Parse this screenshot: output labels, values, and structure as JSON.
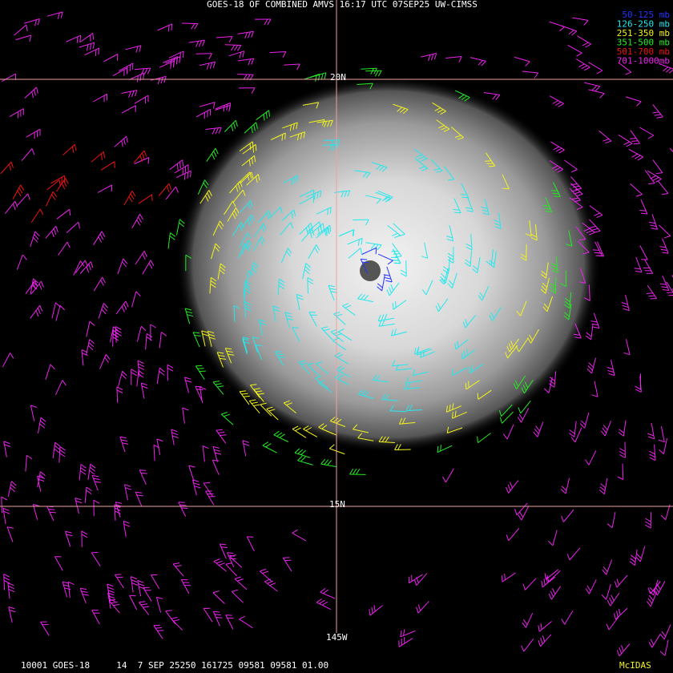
{
  "header": {
    "title": "GOES-18 OF COMBINED AMVS 16:17 UTC 07SEP25 UW-CIMSS"
  },
  "legend": [
    {
      "label": "50-125 mb",
      "color": "#2233ff"
    },
    {
      "label": "126-250 mb",
      "color": "#22e8ee"
    },
    {
      "label": "251-350 mb",
      "color": "#f4f41a"
    },
    {
      "label": "351-500 mb",
      "color": "#22ee22"
    },
    {
      "label": "501-700 mb",
      "color": "#ee1111"
    },
    {
      "label": "701-1000mb",
      "color": "#ee22ee"
    }
  ],
  "grid_labels": {
    "lat_north": "20N",
    "lat_south": "15N",
    "lon": "145W"
  },
  "footer": {
    "info": "10001 GOES-18     14  7 SEP 25250 161725 09581 09581 01.00",
    "software": "McIDAS"
  }
}
